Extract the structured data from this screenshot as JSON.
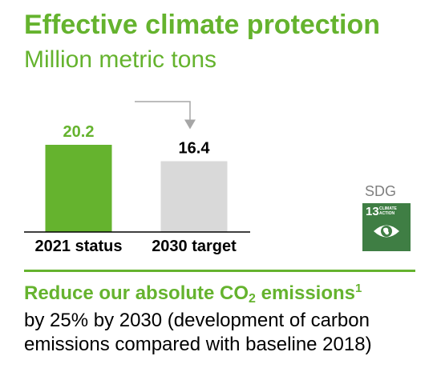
{
  "header": {
    "title": "Effective climate protection",
    "subtitle": "Million metric tons"
  },
  "chart_data": {
    "type": "bar",
    "categories": [
      "2021 status",
      "2030 target"
    ],
    "values": [
      20.2,
      16.4
    ],
    "value_labels": [
      "20.2",
      "16.4"
    ],
    "value_label_colors": [
      "#65b32e",
      "#000000"
    ],
    "bar_colors": [
      "#65b32e",
      "#d9d9d9"
    ],
    "ylim": [
      0,
      20.2
    ],
    "annotations": [
      {
        "type": "reduction-arrow",
        "from": "2021 status",
        "to": "2030 target"
      }
    ],
    "grid": false
  },
  "sdg": {
    "label": "SDG",
    "number": "13",
    "name_line1": "CLIMATE",
    "name_line2": "ACTION",
    "icon": "eye-globe-icon",
    "color": "#3f7e44"
  },
  "goal": {
    "head_prefix": "Reduce our absolute CO",
    "head_sub": "2",
    "head_mid": " emissions",
    "head_sup": "1",
    "line1": "by 25% by 2030 (development of carbon",
    "line2": "emissions compared with baseline 2018)"
  },
  "colors": {
    "brand_green": "#65b32e",
    "divider": "#65b32e",
    "arrow": "#a6a6a6"
  }
}
